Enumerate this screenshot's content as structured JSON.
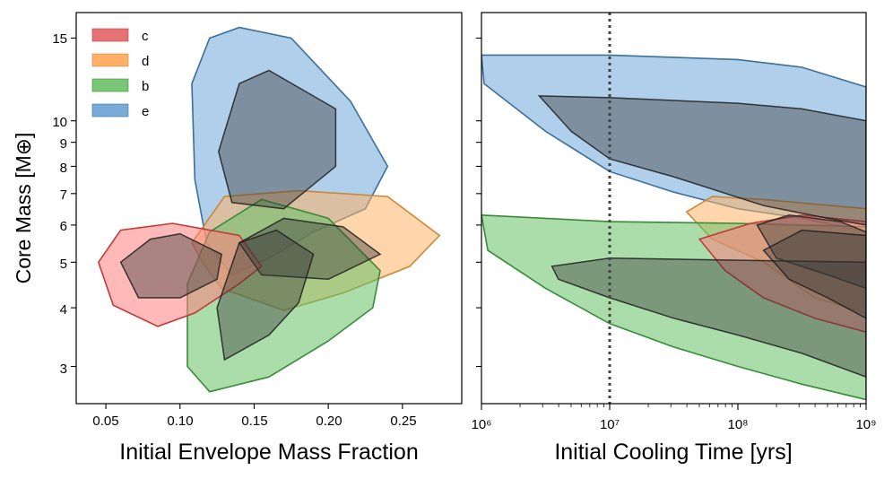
{
  "chart_data": [
    {
      "type": "contour",
      "panel": "left",
      "xlabel": "Initial Envelope Mass Fraction",
      "ylabel": "Core Mass [M⊕]",
      "xlim": [
        0.03,
        0.29
      ],
      "ylim_log": [
        2.5,
        17
      ],
      "x_ticks": [
        0.05,
        0.1,
        0.15,
        0.2,
        0.25
      ],
      "x_tick_labels": [
        "0.05",
        "0.10",
        "0.15",
        "0.20",
        "0.25"
      ],
      "y_ticks": [
        3,
        4,
        5,
        6,
        7,
        8,
        9,
        10,
        15
      ],
      "y_tick_labels": [
        "3",
        "4",
        "5",
        "6",
        "7",
        "8",
        "9",
        "10",
        "15"
      ],
      "legend": {
        "position": "top-left",
        "entries": [
          {
            "label": "c",
            "color": "#e57373"
          },
          {
            "label": "d",
            "color": "#ffb066"
          },
          {
            "label": "b",
            "color": "#77c777"
          },
          {
            "label": "e",
            "color": "#7aaad6"
          }
        ]
      },
      "series": [
        {
          "name": "e",
          "outer": [
            [
              0.11,
              7.5
            ],
            [
              0.108,
              12
            ],
            [
              0.12,
              15
            ],
            [
              0.14,
              15.8
            ],
            [
              0.175,
              15
            ],
            [
              0.215,
              11
            ],
            [
              0.24,
              8
            ],
            [
              0.225,
              6.5
            ],
            [
              0.19,
              5.8
            ],
            [
              0.16,
              5.1
            ],
            [
              0.135,
              4.7
            ],
            [
              0.118,
              5.5
            ]
          ],
          "inner": [
            [
              0.126,
              8.6
            ],
            [
              0.14,
              12
            ],
            [
              0.16,
              12.8
            ],
            [
              0.205,
              10.6
            ],
            [
              0.205,
              8
            ],
            [
              0.17,
              6.5
            ],
            [
              0.135,
              6.7
            ]
          ]
        },
        {
          "name": "d",
          "outer": [
            [
              0.108,
              5.5
            ],
            [
              0.13,
              6.9
            ],
            [
              0.18,
              7.1
            ],
            [
              0.24,
              6.9
            ],
            [
              0.275,
              5.7
            ],
            [
              0.255,
              4.9
            ],
            [
              0.21,
              4.3
            ],
            [
              0.17,
              3.95
            ],
            [
              0.128,
              4.4
            ],
            [
              0.115,
              5.0
            ]
          ],
          "inner": [
            [
              0.14,
              5.5
            ],
            [
              0.17,
              6.2
            ],
            [
              0.21,
              5.95
            ],
            [
              0.235,
              5.2
            ],
            [
              0.2,
              4.6
            ],
            [
              0.155,
              4.7
            ]
          ]
        },
        {
          "name": "b",
          "outer": [
            [
              0.105,
              3.0
            ],
            [
              0.105,
              4.5
            ],
            [
              0.12,
              5.8
            ],
            [
              0.155,
              6.8
            ],
            [
              0.2,
              6.2
            ],
            [
              0.235,
              4.8
            ],
            [
              0.23,
              4.0
            ],
            [
              0.2,
              3.4
            ],
            [
              0.16,
              2.85
            ],
            [
              0.12,
              2.65
            ]
          ],
          "inner": [
            [
              0.125,
              4.0
            ],
            [
              0.14,
              5.5
            ],
            [
              0.165,
              5.85
            ],
            [
              0.19,
              5.2
            ],
            [
              0.18,
              4.1
            ],
            [
              0.16,
              3.5
            ],
            [
              0.13,
              3.1
            ]
          ]
        },
        {
          "name": "c",
          "outer": [
            [
              0.045,
              5.0
            ],
            [
              0.06,
              5.85
            ],
            [
              0.095,
              6.05
            ],
            [
              0.14,
              5.7
            ],
            [
              0.155,
              4.9
            ],
            [
              0.14,
              4.5
            ],
            [
              0.11,
              3.9
            ],
            [
              0.085,
              3.65
            ],
            [
              0.055,
              4.05
            ]
          ],
          "inner": [
            [
              0.06,
              5.0
            ],
            [
              0.08,
              5.6
            ],
            [
              0.1,
              5.75
            ],
            [
              0.128,
              5.2
            ],
            [
              0.125,
              4.6
            ],
            [
              0.1,
              4.2
            ],
            [
              0.072,
              4.2
            ]
          ]
        }
      ]
    },
    {
      "type": "contour",
      "panel": "right",
      "xlabel": "Initial Cooling Time [yrs]",
      "xscale": "log",
      "xlim_log10": [
        6,
        9
      ],
      "ylim_log": [
        2.5,
        17
      ],
      "x_tick_labels": [
        "10⁶",
        "10⁷",
        "10⁸",
        "10⁹"
      ],
      "vline": {
        "x_log10": 7,
        "style": "dotted"
      },
      "series": [
        {
          "name": "e",
          "outer": [
            [
              6.0,
              13.8
            ],
            [
              6.02,
              12.0
            ],
            [
              6.5,
              9.5
            ],
            [
              7.0,
              7.8
            ],
            [
              7.5,
              7.05
            ],
            [
              8.0,
              6.5
            ],
            [
              8.5,
              6.2
            ],
            [
              9.0,
              5.8
            ],
            [
              9.0,
              11.8
            ],
            [
              8.5,
              13.0
            ],
            [
              8.0,
              13.5
            ],
            [
              7.0,
              13.8
            ]
          ],
          "inner": [
            [
              6.45,
              11.3
            ],
            [
              6.7,
              9.5
            ],
            [
              7.0,
              8.3
            ],
            [
              7.5,
              7.6
            ],
            [
              8.2,
              6.6
            ],
            [
              8.7,
              6.2
            ],
            [
              9.0,
              6.0
            ],
            [
              9.0,
              10.0
            ],
            [
              8.5,
              10.6
            ],
            [
              8.0,
              10.9
            ],
            [
              7.0,
              11.2
            ]
          ]
        },
        {
          "name": "d",
          "outer": [
            [
              7.6,
              6.4
            ],
            [
              7.8,
              6.9
            ],
            [
              8.2,
              6.8
            ],
            [
              9.0,
              6.5
            ],
            [
              9.0,
              3.9
            ],
            [
              8.6,
              4.2
            ],
            [
              8.2,
              5.0
            ],
            [
              7.8,
              5.6
            ]
          ],
          "inner": [
            [
              8.15,
              6.0
            ],
            [
              8.4,
              6.3
            ],
            [
              8.8,
              6.1
            ],
            [
              9.0,
              5.8
            ],
            [
              9.0,
              4.4
            ],
            [
              8.7,
              4.7
            ],
            [
              8.3,
              5.1
            ]
          ]
        },
        {
          "name": "b",
          "outer": [
            [
              6.0,
              6.3
            ],
            [
              7.0,
              6.1
            ],
            [
              8.0,
              6.05
            ],
            [
              9.0,
              5.95
            ],
            [
              9.0,
              2.55
            ],
            [
              8.5,
              2.75
            ],
            [
              8.0,
              3.0
            ],
            [
              7.5,
              3.3
            ],
            [
              7.0,
              3.7
            ],
            [
              6.5,
              4.4
            ],
            [
              6.05,
              5.3
            ]
          ],
          "inner": [
            [
              6.55,
              4.9
            ],
            [
              7.0,
              5.1
            ],
            [
              8.0,
              5.05
            ],
            [
              9.0,
              5.0
            ],
            [
              9.0,
              2.85
            ],
            [
              8.5,
              3.2
            ],
            [
              8.0,
              3.5
            ],
            [
              7.5,
              3.8
            ],
            [
              7.0,
              4.2
            ],
            [
              6.6,
              4.6
            ]
          ]
        },
        {
          "name": "c",
          "outer": [
            [
              7.7,
              5.6
            ],
            [
              8.1,
              6.05
            ],
            [
              8.5,
              6.3
            ],
            [
              9.0,
              6.1
            ],
            [
              9.0,
              3.55
            ],
            [
              8.6,
              3.8
            ],
            [
              8.2,
              4.2
            ],
            [
              7.9,
              4.8
            ]
          ],
          "inner": [
            [
              8.2,
              5.3
            ],
            [
              8.5,
              5.85
            ],
            [
              9.0,
              5.7
            ],
            [
              9.0,
              3.8
            ],
            [
              8.7,
              4.2
            ],
            [
              8.4,
              4.6
            ]
          ]
        }
      ]
    }
  ],
  "colors": {
    "c": {
      "fill": "#ff7f7f",
      "stroke": "#c0393b"
    },
    "d": {
      "fill": "#ffb266",
      "stroke": "#c68a3a"
    },
    "b": {
      "fill": "#66c166",
      "stroke": "#3a8a3a"
    },
    "e": {
      "fill": "#6fa8d8",
      "stroke": "#3d6f9a"
    },
    "inner_overlay": "#3a3a3a"
  }
}
